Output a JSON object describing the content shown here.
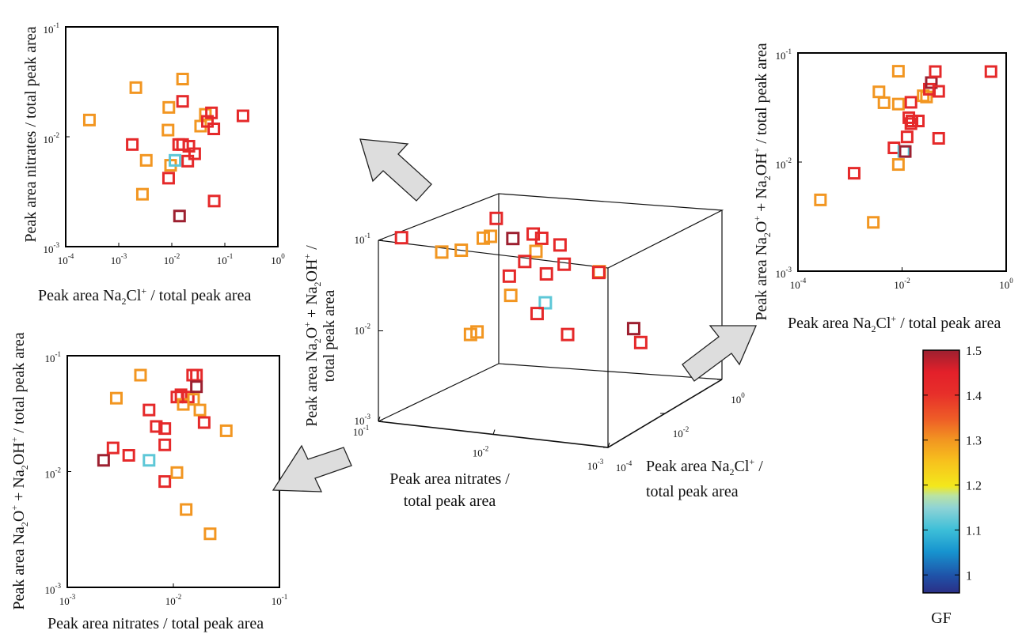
{
  "gf_scale": {
    "min": 0.96,
    "max": 1.5,
    "stops": [
      [
        0.96,
        "#2b2f86"
      ],
      [
        1.0,
        "#1f52a8"
      ],
      [
        1.05,
        "#1794cf"
      ],
      [
        1.1,
        "#3dbfd8"
      ],
      [
        1.15,
        "#8ed3d6"
      ],
      [
        1.18,
        "#b9e3a4"
      ],
      [
        1.2,
        "#f3e81c"
      ],
      [
        1.25,
        "#f7c21d"
      ],
      [
        1.3,
        "#f29621"
      ],
      [
        1.35,
        "#ee5b27"
      ],
      [
        1.4,
        "#e72f2a"
      ],
      [
        1.45,
        "#e3202a"
      ],
      [
        1.5,
        "#9d2030"
      ]
    ]
  },
  "text": {
    "a_ylabel": "Peak area nitrates / total peak area",
    "a_xlabel": {
      "pre": "Peak area Na",
      "sub": "2",
      "mid": "Cl",
      "sup": "+",
      "post": " / total peak area"
    },
    "b_ylabel": {
      "p1": "Peak area Na",
      "s1": "2",
      "p2": "O",
      "u1": "+",
      "p3": " + Na",
      "s2": "2",
      "p4": "OH",
      "u2": "+",
      "p5": " / total peak area"
    },
    "b_xlabel": "Peak area nitrates / total peak area",
    "c_ylabel": {
      "p1": "Peak area Na",
      "s1": "2",
      "p2": "O",
      "u1": "+",
      "p3": " + Na",
      "s2": "2",
      "p4": "OH",
      "u2": "+",
      "p5": " / total peak area"
    },
    "c_xlabel": {
      "pre": "Peak area Na",
      "sub": "2",
      "mid": "Cl",
      "sup": "+",
      "post": " / total peak area"
    },
    "d3_zlabel": {
      "l1p1": "Peak area Na",
      "l1s1": "2",
      "l1p2": "O",
      "l1u1": "+",
      "l1p3": " + Na",
      "l1s2": "2",
      "l1p4": "OH",
      "l1u2": "+",
      "l1p5": " /",
      "l2": "total peak area"
    },
    "d3_xlabel_1": "Peak area nitrates /",
    "d3_xlabel_2": "total peak area",
    "d3_ylabel_1": {
      "pre": "Peak area Na",
      "sub": "2",
      "mid": "Cl",
      "sup": "+",
      "post": " /"
    },
    "d3_ylabel_2": "total peak area",
    "colorbar_label": "GF"
  },
  "colorbar_ticks": [
    "1.5",
    "1.4",
    "1.3",
    "1.2",
    "1.1",
    "1"
  ],
  "chart_data": [
    {
      "type": "scatter",
      "name": "Nitrates vs Na2Cl+",
      "xscale": "log",
      "yscale": "log",
      "xlim": [
        0.0001,
        1
      ],
      "ylim": [
        0.001,
        0.1
      ],
      "xticks": [
        "10^-4",
        "10^-3",
        "10^-2",
        "10^-1",
        "10^0"
      ],
      "yticks": [
        "10^-3",
        "10^-2",
        "10^-1"
      ],
      "points": [
        {
          "x": 0.00028,
          "y": 0.0142,
          "gf": 1.3
        },
        {
          "x": 0.0018,
          "y": 0.0085,
          "gf": 1.42
        },
        {
          "x": 0.0021,
          "y": 0.028,
          "gf": 1.3
        },
        {
          "x": 0.0033,
          "y": 0.0061,
          "gf": 1.3
        },
        {
          "x": 0.0028,
          "y": 0.003,
          "gf": 1.3
        },
        {
          "x": 0.0087,
          "y": 0.0042,
          "gf": 1.42
        },
        {
          "x": 0.0085,
          "y": 0.0115,
          "gf": 1.3
        },
        {
          "x": 0.0088,
          "y": 0.0185,
          "gf": 1.3
        },
        {
          "x": 0.0095,
          "y": 0.0055,
          "gf": 1.3
        },
        {
          "x": 0.0115,
          "y": 0.0061,
          "gf": 1.12
        },
        {
          "x": 0.0135,
          "y": 0.0085,
          "gf": 1.42
        },
        {
          "x": 0.016,
          "y": 0.0335,
          "gf": 1.3
        },
        {
          "x": 0.016,
          "y": 0.021,
          "gf": 1.42
        },
        {
          "x": 0.016,
          "y": 0.0085,
          "gf": 1.42
        },
        {
          "x": 0.02,
          "y": 0.006,
          "gf": 1.42
        },
        {
          "x": 0.021,
          "y": 0.0082,
          "gf": 1.42
        },
        {
          "x": 0.014,
          "y": 0.0019,
          "gf": 1.5
        },
        {
          "x": 0.027,
          "y": 0.007,
          "gf": 1.42
        },
        {
          "x": 0.035,
          "y": 0.0125,
          "gf": 1.3
        },
        {
          "x": 0.043,
          "y": 0.016,
          "gf": 1.3
        },
        {
          "x": 0.047,
          "y": 0.0138,
          "gf": 1.42
        },
        {
          "x": 0.056,
          "y": 0.0165,
          "gf": 1.42
        },
        {
          "x": 0.062,
          "y": 0.0118,
          "gf": 1.42
        },
        {
          "x": 0.063,
          "y": 0.0026,
          "gf": 1.42
        },
        {
          "x": 0.22,
          "y": 0.0155,
          "gf": 1.42
        }
      ]
    },
    {
      "type": "scatter",
      "name": "Na2O+ + Na2OH+ vs nitrates",
      "xscale": "log",
      "yscale": "log",
      "xlim": [
        0.001,
        0.1
      ],
      "ylim": [
        0.001,
        0.1
      ],
      "xticks": [
        "10^-3",
        "10^-2",
        "10^-1"
      ],
      "yticks": [
        "10^-3",
        "10^-2",
        "10^-1"
      ],
      "points": [
        {
          "x": 0.0022,
          "y": 0.0125,
          "gf": 1.5
        },
        {
          "x": 0.0027,
          "y": 0.016,
          "gf": 1.42
        },
        {
          "x": 0.0029,
          "y": 0.043,
          "gf": 1.3
        },
        {
          "x": 0.0038,
          "y": 0.0138,
          "gf": 1.42
        },
        {
          "x": 0.0049,
          "y": 0.068,
          "gf": 1.3
        },
        {
          "x": 0.0059,
          "y": 0.0125,
          "gf": 1.12
        },
        {
          "x": 0.0059,
          "y": 0.034,
          "gf": 1.42
        },
        {
          "x": 0.0069,
          "y": 0.0245,
          "gf": 1.42
        },
        {
          "x": 0.0083,
          "y": 0.0235,
          "gf": 1.42
        },
        {
          "x": 0.0083,
          "y": 0.017,
          "gf": 1.42
        },
        {
          "x": 0.0083,
          "y": 0.0082,
          "gf": 1.42
        },
        {
          "x": 0.0108,
          "y": 0.0098,
          "gf": 1.3
        },
        {
          "x": 0.0108,
          "y": 0.044,
          "gf": 1.42
        },
        {
          "x": 0.0118,
          "y": 0.046,
          "gf": 1.42
        },
        {
          "x": 0.0124,
          "y": 0.038,
          "gf": 1.3
        },
        {
          "x": 0.0132,
          "y": 0.0047,
          "gf": 1.3
        },
        {
          "x": 0.0138,
          "y": 0.044,
          "gf": 1.42
        },
        {
          "x": 0.0152,
          "y": 0.068,
          "gf": 1.42
        },
        {
          "x": 0.0165,
          "y": 0.068,
          "gf": 1.42
        },
        {
          "x": 0.0165,
          "y": 0.054,
          "gf": 1.5
        },
        {
          "x": 0.0155,
          "y": 0.042,
          "gf": 1.3
        },
        {
          "x": 0.0178,
          "y": 0.034,
          "gf": 1.3
        },
        {
          "x": 0.0195,
          "y": 0.0265,
          "gf": 1.42
        },
        {
          "x": 0.0222,
          "y": 0.0029,
          "gf": 1.3
        },
        {
          "x": 0.0315,
          "y": 0.0225,
          "gf": 1.3
        }
      ]
    },
    {
      "type": "scatter",
      "name": "Na2O+ + Na2OH+ vs Na2Cl+",
      "xscale": "log",
      "yscale": "log",
      "xlim": [
        0.0001,
        1
      ],
      "ylim": [
        0.001,
        0.1
      ],
      "xticks": [
        "10^-4",
        "10^-2",
        "10^0"
      ],
      "yticks": [
        "10^-3",
        "10^-2",
        "10^-1"
      ],
      "points": [
        {
          "x": 0.00027,
          "y": 0.0045,
          "gf": 1.3
        },
        {
          "x": 0.0012,
          "y": 0.0079,
          "gf": 1.42
        },
        {
          "x": 0.0028,
          "y": 0.0028,
          "gf": 1.3
        },
        {
          "x": 0.0036,
          "y": 0.044,
          "gf": 1.3
        },
        {
          "x": 0.0045,
          "y": 0.035,
          "gf": 1.3
        },
        {
          "x": 0.007,
          "y": 0.0135,
          "gf": 1.42
        },
        {
          "x": 0.0085,
          "y": 0.068,
          "gf": 1.3
        },
        {
          "x": 0.0085,
          "y": 0.034,
          "gf": 1.3
        },
        {
          "x": 0.0085,
          "y": 0.0095,
          "gf": 1.3
        },
        {
          "x": 0.0108,
          "y": 0.0125,
          "gf": 1.12
        },
        {
          "x": 0.0115,
          "y": 0.0125,
          "gf": 1.5
        },
        {
          "x": 0.0125,
          "y": 0.017,
          "gf": 1.42
        },
        {
          "x": 0.0135,
          "y": 0.0255,
          "gf": 1.42
        },
        {
          "x": 0.0148,
          "y": 0.0225,
          "gf": 1.42
        },
        {
          "x": 0.0148,
          "y": 0.0353,
          "gf": 1.42
        },
        {
          "x": 0.0155,
          "y": 0.0238,
          "gf": 1.42
        },
        {
          "x": 0.0205,
          "y": 0.0238,
          "gf": 1.42
        },
        {
          "x": 0.0255,
          "y": 0.0405,
          "gf": 1.3
        },
        {
          "x": 0.0295,
          "y": 0.0395,
          "gf": 1.3
        },
        {
          "x": 0.0335,
          "y": 0.0465,
          "gf": 1.42
        },
        {
          "x": 0.0365,
          "y": 0.0535,
          "gf": 1.5
        },
        {
          "x": 0.0435,
          "y": 0.0675,
          "gf": 1.42
        },
        {
          "x": 0.0505,
          "y": 0.0445,
          "gf": 1.42
        },
        {
          "x": 0.0505,
          "y": 0.0165,
          "gf": 1.42
        },
        {
          "x": 0.51,
          "y": 0.0675,
          "gf": 1.42
        }
      ]
    },
    {
      "type": "scatter",
      "name": "3D view",
      "xlabel": "Peak area nitrates / total peak area",
      "ylabel": "Peak area Na2Cl+ / total peak area",
      "zlabel": "Peak area Na2O+ + Na2OH+ / total peak area",
      "xticks": [
        "10^-1",
        "10^-2",
        "10^-3"
      ],
      "yticks": [
        "10^-4",
        "10^-2",
        "10^0"
      ],
      "zticks": [
        "10^-3",
        "10^-2",
        "10^-1"
      ],
      "points": [
        {
          "x": 0.0029,
          "y": 0.00028,
          "z": 0.0125,
          "gf": 1.42
        },
        {
          "x": 0.0018,
          "y": 0.0085,
          "z": 0.0082,
          "gf": 1.5
        },
        {
          "x": 0.0021,
          "y": 0.028,
          "z": 0.0045,
          "gf": 1.42
        },
        {
          "x": 0.0033,
          "y": 0.0061,
          "z": 0.034,
          "gf": 1.3
        },
        {
          "x": 0.0028,
          "y": 0.003,
          "z": 0.039,
          "gf": 1.42
        },
        {
          "x": 0.0087,
          "y": 0.0042,
          "z": 0.03,
          "gf": 1.42
        },
        {
          "x": 0.0085,
          "y": 0.0115,
          "z": 0.052,
          "gf": 1.42
        },
        {
          "x": 0.0088,
          "y": 0.0185,
          "z": 0.029,
          "gf": 1.42
        },
        {
          "x": 0.0095,
          "y": 0.0055,
          "z": 0.0135,
          "gf": 1.12
        },
        {
          "x": 0.0115,
          "y": 0.0061,
          "z": 0.0098,
          "gf": 1.42
        },
        {
          "x": 0.0135,
          "y": 0.0085,
          "z": 0.068,
          "gf": 1.42
        },
        {
          "x": 0.016,
          "y": 0.0335,
          "z": 0.046,
          "gf": 1.42
        },
        {
          "x": 0.016,
          "y": 0.021,
          "z": 0.036,
          "gf": 1.3
        },
        {
          "x": 0.016,
          "y": 0.0085,
          "z": 0.033,
          "gf": 1.42
        },
        {
          "x": 0.02,
          "y": 0.006,
          "z": 0.0235,
          "gf": 1.42
        },
        {
          "x": 0.021,
          "y": 0.0082,
          "z": 0.0135,
          "gf": 1.3
        },
        {
          "x": 0.014,
          "y": 0.0019,
          "z": 0.08,
          "gf": 1.5
        },
        {
          "x": 0.027,
          "y": 0.007,
          "z": 0.095,
          "gf": 1.42
        },
        {
          "x": 0.035,
          "y": 0.0125,
          "z": 0.052,
          "gf": 1.3
        },
        {
          "x": 0.043,
          "y": 0.016,
          "z": 0.046,
          "gf": 1.3
        },
        {
          "x": 0.047,
          "y": 0.0138,
          "z": 0.0043,
          "gf": 1.3
        },
        {
          "x": 0.056,
          "y": 0.0165,
          "z": 0.0038,
          "gf": 1.3
        },
        {
          "x": 0.062,
          "y": 0.0118,
          "z": 0.034,
          "gf": 1.3
        },
        {
          "x": 0.063,
          "y": 0.0026,
          "z": 0.043,
          "gf": 1.3
        },
        {
          "x": 0.22,
          "y": 0.0155,
          "z": 0.037,
          "gf": 1.42
        }
      ]
    }
  ]
}
